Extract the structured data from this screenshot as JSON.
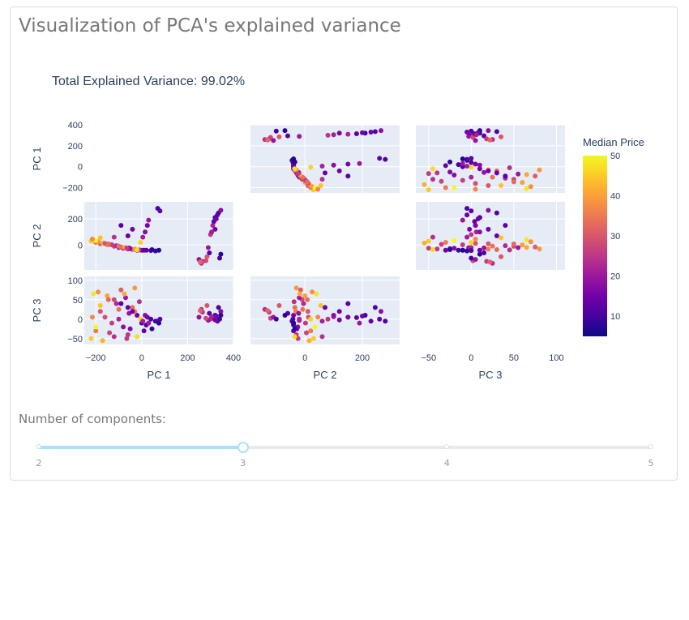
{
  "page": {
    "title": "Visualization of PCA's explained variance"
  },
  "slider": {
    "label": "Number of components:",
    "min": 2,
    "max": 5,
    "value": 3,
    "marks": [
      "2",
      "3",
      "4",
      "5"
    ],
    "colors": {
      "track": "#e9e9e9",
      "fill": "#abe2fb"
    }
  },
  "chart_data": {
    "type": "scatter",
    "subtype": "scatter-matrix",
    "title": "Total Explained Variance: 99.02%",
    "dimensions": [
      "PC 1",
      "PC 2",
      "PC 3"
    ],
    "diagonal_visible": false,
    "ranges": {
      "PC 1": [
        -250,
        400
      ],
      "PC 2": [
        -190,
        330
      ],
      "PC 3": [
        -65,
        110
      ]
    },
    "ticks": {
      "PC 1": [
        -200,
        0,
        200,
        400
      ],
      "PC 2": [
        0,
        200
      ],
      "PC 3": [
        -50,
        0,
        50,
        100
      ]
    },
    "bottom_ticks": {
      "PC 1": [
        -200,
        0,
        200,
        400
      ],
      "PC 2": [
        0,
        200
      ],
      "PC 3": [
        -50,
        0,
        50,
        100
      ]
    },
    "left_ticks": {
      "PC 1": [
        -200,
        0,
        200,
        400
      ],
      "PC 2": [
        0,
        200
      ],
      "PC 3": [
        -50,
        0,
        50,
        100
      ]
    },
    "colorbar": {
      "title": "Median Price",
      "min": 5,
      "max": 50,
      "ticks": [
        10,
        20,
        30,
        40,
        50
      ],
      "colorscale": [
        "#0d0887",
        "#46039f",
        "#7201a8",
        "#9c179e",
        "#bd3786",
        "#d8576b",
        "#ed7953",
        "#fb9f3a",
        "#fdca26",
        "#f0f921"
      ]
    },
    "points": [
      {
        "pc1": 330,
        "pc2": 230,
        "pc3": -5,
        "c": 14
      },
      {
        "pc1": 335,
        "pc2": 245,
        "pc3": 30,
        "c": 11
      },
      {
        "pc1": 345,
        "pc2": 265,
        "pc3": 20,
        "c": 18
      },
      {
        "pc1": 320,
        "pc2": 210,
        "pc3": 10,
        "c": 9
      },
      {
        "pc1": 310,
        "pc2": 150,
        "pc3": 5,
        "c": 22
      },
      {
        "pc1": 300,
        "pc2": 80,
        "pc3": 0,
        "c": 25
      },
      {
        "pc1": 290,
        "pc2": -20,
        "pc3": -3,
        "c": 20
      },
      {
        "pc1": 280,
        "pc2": -120,
        "pc3": 2,
        "c": 28
      },
      {
        "pc1": 285,
        "pc2": -90,
        "pc3": 35,
        "c": 30
      },
      {
        "pc1": 295,
        "pc2": -60,
        "pc3": 15,
        "c": 12
      },
      {
        "pc1": 260,
        "pc2": -140,
        "pc3": 25,
        "c": 24
      },
      {
        "pc1": 250,
        "pc2": -110,
        "pc3": 5,
        "c": 19
      },
      {
        "pc1": 340,
        "pc2": -100,
        "pc3": 0,
        "c": 10
      },
      {
        "pc1": 345,
        "pc2": -70,
        "pc3": 10,
        "c": 8
      },
      {
        "pc1": 320,
        "pc2": 120,
        "pc3": -2,
        "c": 16
      },
      {
        "pc1": 315,
        "pc2": 180,
        "pc3": 4,
        "c": 13
      },
      {
        "pc1": 325,
        "pc2": 200,
        "pc3": 8,
        "c": 15
      },
      {
        "pc1": 265,
        "pc2": -125,
        "pc3": 18,
        "c": 26
      },
      {
        "pc1": 255,
        "pc2": -130,
        "pc3": 22,
        "c": 32
      },
      {
        "pc1": 305,
        "pc2": 100,
        "pc3": 6,
        "c": 21
      },
      {
        "pc1": -220,
        "pc2": 30,
        "pc3": -50,
        "c": 45
      },
      {
        "pc1": -200,
        "pc2": 20,
        "pc3": -30,
        "c": 35
      },
      {
        "pc1": -180,
        "pc2": 10,
        "pc3": 20,
        "c": 30
      },
      {
        "pc1": -150,
        "pc2": 0,
        "pc3": 60,
        "c": 40
      },
      {
        "pc1": -120,
        "pc2": -10,
        "pc3": 50,
        "c": 28
      },
      {
        "pc1": -100,
        "pc2": -20,
        "pc3": 0,
        "c": 22
      },
      {
        "pc1": -80,
        "pc2": -25,
        "pc3": -20,
        "c": 18
      },
      {
        "pc1": -60,
        "pc2": -30,
        "pc3": -40,
        "c": 25
      },
      {
        "pc1": -40,
        "pc2": -35,
        "pc3": 30,
        "c": 33
      },
      {
        "pc1": -20,
        "pc2": -40,
        "pc3": 10,
        "c": 15
      },
      {
        "pc1": 0,
        "pc2": -40,
        "pc3": -10,
        "c": 12
      },
      {
        "pc1": 20,
        "pc2": -40,
        "pc3": -15,
        "c": 10
      },
      {
        "pc1": 60,
        "pc2": -45,
        "pc3": -5,
        "c": 9
      },
      {
        "pc1": -210,
        "pc2": 40,
        "pc3": 65,
        "c": 48
      },
      {
        "pc1": -190,
        "pc2": 25,
        "pc3": 70,
        "c": 38
      },
      {
        "pc1": -170,
        "pc2": 15,
        "pc3": -55,
        "c": 42
      },
      {
        "pc1": -140,
        "pc2": 5,
        "pc3": -35,
        "c": 27
      },
      {
        "pc1": -110,
        "pc2": -5,
        "pc3": 40,
        "c": 23
      },
      {
        "pc1": -90,
        "pc2": -15,
        "pc3": 75,
        "c": 31
      },
      {
        "pc1": -70,
        "pc2": -20,
        "pc3": 55,
        "c": 20
      },
      {
        "pc1": -50,
        "pc2": -28,
        "pc3": -25,
        "c": 17
      },
      {
        "pc1": -30,
        "pc2": -32,
        "pc3": 20,
        "c": 36
      },
      {
        "pc1": -10,
        "pc2": -38,
        "pc3": 45,
        "c": 24
      },
      {
        "pc1": 10,
        "pc2": -40,
        "pc3": -30,
        "c": 14
      },
      {
        "pc1": 40,
        "pc2": -42,
        "pc3": 0,
        "c": 11
      },
      {
        "pc1": -160,
        "pc2": 12,
        "pc3": 5,
        "c": 29
      },
      {
        "pc1": -130,
        "pc2": 2,
        "pc3": -10,
        "c": 26
      },
      {
        "pc1": -100,
        "pc2": -8,
        "pc3": 25,
        "c": 34
      },
      {
        "pc1": -75,
        "pc2": -18,
        "pc3": 65,
        "c": 41
      },
      {
        "pc1": -55,
        "pc2": -22,
        "pc3": 15,
        "c": 19
      },
      {
        "pc1": -200,
        "pc2": 35,
        "pc3": -20,
        "c": 50
      },
      {
        "pc1": -215,
        "pc2": 45,
        "pc3": 5,
        "c": 37
      },
      {
        "pc1": -5,
        "pc2": 20,
        "pc3": 0,
        "c": 46
      },
      {
        "pc1": 5,
        "pc2": 60,
        "pc3": -5,
        "c": 21
      },
      {
        "pc1": 15,
        "pc2": 100,
        "pc3": 10,
        "c": 18
      },
      {
        "pc1": 25,
        "pc2": 150,
        "pc3": 5,
        "c": 16
      },
      {
        "pc1": 30,
        "pc2": 190,
        "pc3": -10,
        "c": 20
      },
      {
        "pc1": -60,
        "pc2": 70,
        "pc3": 30,
        "c": 14
      },
      {
        "pc1": -90,
        "pc2": 150,
        "pc3": 40,
        "c": 12
      },
      {
        "pc1": -40,
        "pc2": 120,
        "pc3": 20,
        "c": 15
      },
      {
        "pc1": 70,
        "pc2": 280,
        "pc3": -5,
        "c": 11
      },
      {
        "pc1": 80,
        "pc2": 260,
        "pc3": 0,
        "c": 13
      },
      {
        "pc1": -120,
        "pc2": 60,
        "pc3": -45,
        "c": 24
      },
      {
        "pc1": -180,
        "pc2": 55,
        "pc3": 35,
        "c": 44
      },
      {
        "pc1": 45,
        "pc2": -35,
        "pc3": -25,
        "c": 8
      },
      {
        "pc1": 75,
        "pc2": -40,
        "pc3": -10,
        "c": 7
      },
      {
        "pc1": -30,
        "pc2": -30,
        "pc3": 80,
        "c": 39
      },
      {
        "pc1": -65,
        "pc2": -24,
        "pc3": -50,
        "c": 26
      },
      {
        "pc1": -145,
        "pc2": 8,
        "pc3": 50,
        "c": 33
      },
      {
        "pc1": -20,
        "pc2": -36,
        "pc3": -45,
        "c": 47
      }
    ]
  }
}
